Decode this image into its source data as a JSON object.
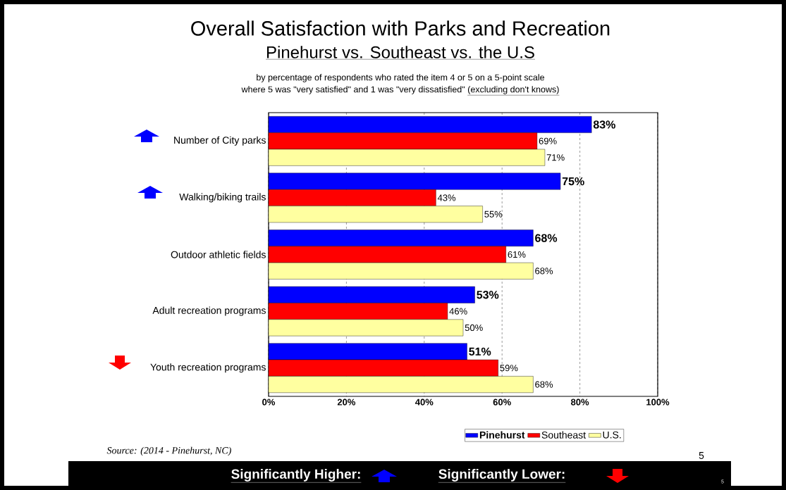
{
  "chart_data": {
    "type": "bar",
    "orientation": "horizontal",
    "title": "Overall Satisfaction with Parks and Recreation",
    "subtitle": "Pinehurst vs. Southeast vs. the U.S",
    "categories": [
      "Number of City parks",
      "Walking/biking trails",
      "Outdoor athletic fields",
      "Adult recreation programs",
      "Youth recreation programs"
    ],
    "series": [
      {
        "name": "Pinehurst",
        "color": "#0000ff",
        "values": [
          83,
          75,
          68,
          53,
          51
        ],
        "value_labels": [
          "83%",
          "75%",
          "68%",
          "53%",
          "51%"
        ]
      },
      {
        "name": "Southeast",
        "color": "#ff0000",
        "values": [
          69,
          43,
          61,
          46,
          59
        ],
        "value_labels": [
          "69%",
          "43%",
          "61%",
          "46%",
          "59%"
        ]
      },
      {
        "name": "U.S.",
        "color": "#ffffa0",
        "values": [
          71,
          55,
          68,
          50,
          68
        ],
        "value_labels": [
          "71%",
          "55%",
          "68%",
          "50%",
          "68%"
        ]
      }
    ],
    "xlim": [
      0,
      100
    ],
    "xticks": [
      {
        "value": 0,
        "label": "0%"
      },
      {
        "value": 20,
        "label": "20%"
      },
      {
        "value": 40,
        "label": "40%"
      },
      {
        "value": 60,
        "label": "60%"
      },
      {
        "value": 80,
        "label": "80%"
      },
      {
        "value": 100,
        "label": "100%"
      }
    ],
    "grid": "x",
    "legend": "bottom right",
    "annotations": [
      "by percentage of respondents who rated the item 4 or 5 on a 5-point scale",
      "where 5 was \"very satisfied\" and 1 was \"very dissatisfied\"",
      "(excluding don't knows)",
      "Source:  (2014 - Pinehurst, NC)",
      "5",
      "Significantly Higher:",
      "Significantly Lower:",
      "5"
    ]
  }
}
